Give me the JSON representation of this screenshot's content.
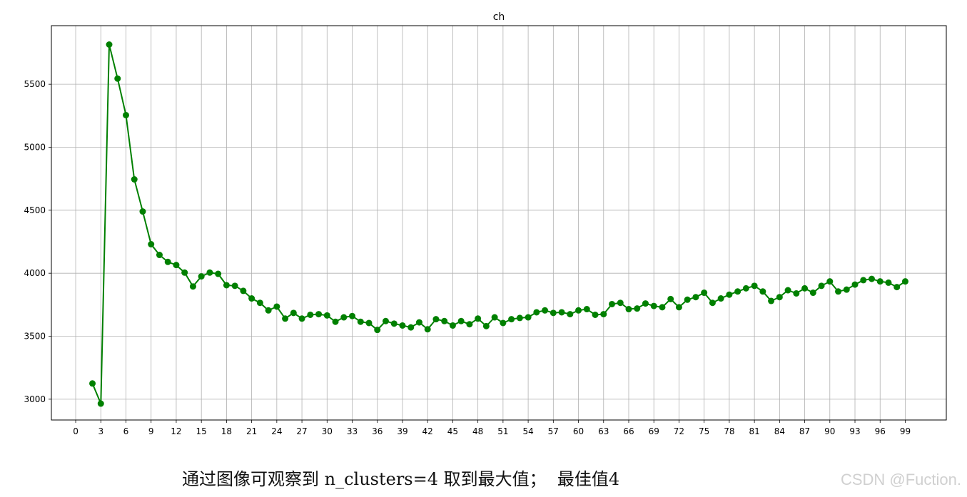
{
  "chart_data": {
    "type": "line",
    "title": "ch",
    "xlabel": "",
    "ylabel": "",
    "xlim": [
      -2.9,
      103.9
    ],
    "ylim": [
      2835,
      5965
    ],
    "x_ticks": [
      0,
      3,
      6,
      9,
      12,
      15,
      18,
      21,
      24,
      27,
      30,
      33,
      36,
      39,
      42,
      45,
      48,
      51,
      54,
      57,
      60,
      63,
      66,
      69,
      72,
      75,
      78,
      81,
      84,
      87,
      90,
      93,
      96,
      99
    ],
    "y_ticks": [
      3000,
      3500,
      4000,
      4500,
      5000,
      5500
    ],
    "grid": true,
    "color": "#008000",
    "marker": "circle",
    "series": [
      {
        "x": [
          2,
          3,
          4,
          5,
          6,
          7,
          8,
          9,
          10,
          11,
          12,
          13,
          14,
          15,
          16,
          17,
          18,
          19,
          20,
          21,
          22,
          23,
          24,
          25,
          26,
          27,
          28,
          29,
          30,
          31,
          32,
          33,
          34,
          35,
          36,
          37,
          38,
          39,
          40,
          41,
          42,
          43,
          44,
          45,
          46,
          47,
          48,
          49,
          50,
          51,
          52,
          53,
          54,
          55,
          56,
          57,
          58,
          59,
          60,
          61,
          62,
          63,
          64,
          65,
          66,
          67,
          68,
          69,
          70,
          71,
          72,
          73,
          74,
          75,
          76,
          77,
          78,
          79,
          80,
          81,
          82,
          83,
          84,
          85,
          86,
          87,
          88,
          89,
          90,
          91,
          92,
          93,
          94,
          95,
          96,
          97,
          98,
          99
        ],
        "values": [
          3125,
          2965,
          5815,
          5545,
          5255,
          4745,
          4490,
          4230,
          4145,
          4090,
          4065,
          4005,
          3895,
          3975,
          4005,
          3995,
          3905,
          3900,
          3860,
          3800,
          3765,
          3705,
          3735,
          3640,
          3685,
          3640,
          3670,
          3675,
          3665,
          3615,
          3650,
          3660,
          3615,
          3605,
          3550,
          3620,
          3600,
          3585,
          3570,
          3610,
          3555,
          3635,
          3620,
          3585,
          3620,
          3595,
          3640,
          3580,
          3650,
          3605,
          3635,
          3645,
          3650,
          3690,
          3705,
          3685,
          3690,
          3675,
          3705,
          3715,
          3670,
          3675,
          3755,
          3765,
          3715,
          3720,
          3760,
          3740,
          3730,
          3795,
          3730,
          3790,
          3810,
          3845,
          3765,
          3800,
          3830,
          3855,
          3880,
          3900,
          3855,
          3780,
          3810,
          3865,
          3840,
          3880,
          3845,
          3900,
          3935,
          3855,
          3870,
          3910,
          3945,
          3955,
          3935,
          3925,
          3890,
          3935
        ]
      }
    ]
  },
  "caption": "通过图像可观察到 n_clusters=4 取到最大值；  最佳值4",
  "watermark": "CSDN @Fuction."
}
